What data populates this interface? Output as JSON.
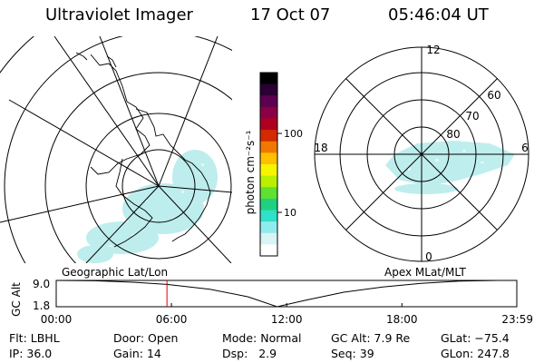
{
  "header": {
    "instrument": "Ultraviolet Imager",
    "date": "17 Oct 07",
    "time": "05:46:04 UT"
  },
  "geo_map": {
    "label": "Geographic Lat/Lon"
  },
  "apex_map": {
    "label": "Apex MLat/MLT",
    "mlt_labels": [
      "12",
      "18",
      "6",
      "0"
    ],
    "mlat_labels": [
      "60",
      "70",
      "80"
    ]
  },
  "colorbar": {
    "unit_label": "photon cm⁻²s⁻¹",
    "ticks": [
      "100",
      "10"
    ],
    "colors": [
      "#000000",
      "#2a0035",
      "#5c0050",
      "#8a0045",
      "#b00020",
      "#d42a00",
      "#f07800",
      "#ffc000",
      "#f8f400",
      "#b8f000",
      "#60e030",
      "#20d080",
      "#30e0c8",
      "#90ecec",
      "#d8f4f4",
      "#ffffff"
    ]
  },
  "chart_data": {
    "type": "line",
    "title": "",
    "ylabel": "GC Alt",
    "ytick_labels": [
      "9.0",
      "1.8"
    ],
    "xtick_labels": [
      "00:00",
      "06:00",
      "12:00",
      "18:00",
      "23:59"
    ],
    "xlim": [
      "00:00",
      "23:59"
    ],
    "ylim": [
      1.8,
      9.0
    ],
    "marker_time": "05:46",
    "series": [
      {
        "x": [
          "00:00",
          "02:00",
          "04:00",
          "05:46",
          "08:00",
          "10:00",
          "11:30",
          "13:00",
          "15:00",
          "17:00",
          "19:00",
          "21:00",
          "23:00",
          "23:59"
        ],
        "values": [
          9.0,
          8.9,
          8.5,
          7.9,
          6.6,
          4.5,
          1.8,
          3.6,
          5.8,
          7.2,
          8.2,
          8.8,
          9.0,
          9.0
        ]
      }
    ]
  },
  "status": {
    "filter_label": "Flt:",
    "filter_value": "LBHL",
    "door_label": "Door:",
    "door_value": "Open",
    "mode_label": "Mode:",
    "mode_value": "Normal",
    "gcalt_label": "GC Alt:",
    "gcalt_value": "7.9 Re",
    "glat_label": "GLat:",
    "glat_value": "−75.4",
    "ip_label": "IP:",
    "ip_value": "36.0",
    "gain_label": "Gain:",
    "gain_value": "14",
    "dsp_label": "Dsp:",
    "dsp_value": "2.9",
    "seq_label": "Seq:",
    "seq_value": "39",
    "glon_label": "GLon:",
    "glon_value": "247.8"
  }
}
